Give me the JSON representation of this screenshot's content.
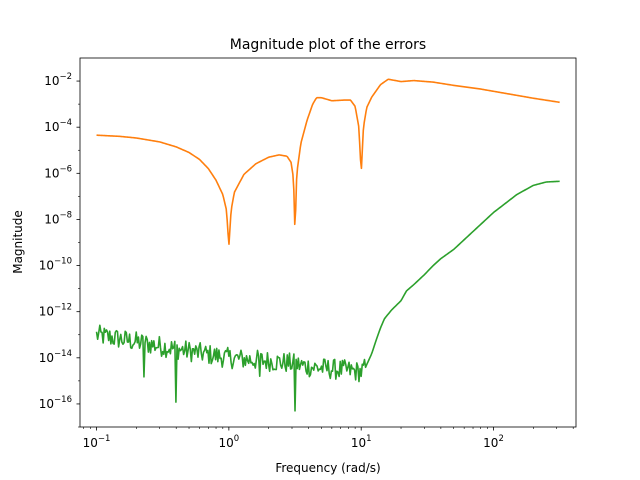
{
  "chart_data": {
    "type": "line",
    "title": "Magnitude plot of the errors",
    "xlabel": "Frequency (rad/s)",
    "ylabel": "Magnitude",
    "xscale": "log",
    "yscale": "log",
    "xlim": [
      0.075,
      420
    ],
    "ylim": [
      1e-17,
      0.1
    ],
    "grid": false,
    "x_ticks": [
      {
        "base": "10",
        "exp": "−1",
        "value": 0.1
      },
      {
        "base": "10",
        "exp": "0",
        "value": 1
      },
      {
        "base": "10",
        "exp": "1",
        "value": 10
      },
      {
        "base": "10",
        "exp": "2",
        "value": 100
      }
    ],
    "y_ticks": [
      {
        "base": "10",
        "exp": "−16",
        "value": 1e-16
      },
      {
        "base": "10",
        "exp": "−14",
        "value": 1e-14
      },
      {
        "base": "10",
        "exp": "−12",
        "value": 1e-12
      },
      {
        "base": "10",
        "exp": "−10",
        "value": 1e-10
      },
      {
        "base": "10",
        "exp": "−8",
        "value": 1e-08
      },
      {
        "base": "10",
        "exp": "−6",
        "value": 1e-06
      },
      {
        "base": "10",
        "exp": "−4",
        "value": 0.0001
      },
      {
        "base": "10",
        "exp": "−2",
        "value": 0.01
      }
    ],
    "series": [
      {
        "color": "#ff7f0e",
        "points": [
          [
            0.1,
            4.5e-05
          ],
          [
            0.15,
            4e-05
          ],
          [
            0.2,
            3.4e-05
          ],
          [
            0.3,
            2.3e-05
          ],
          [
            0.4,
            1.4e-05
          ],
          [
            0.5,
            8e-06
          ],
          [
            0.6,
            4e-06
          ],
          [
            0.7,
            1.6e-06
          ],
          [
            0.8,
            5e-07
          ],
          [
            0.9,
            1.2e-07
          ],
          [
            0.96,
            2.5e-08
          ],
          [
            1.0,
            7e-10
          ],
          [
            1.04,
            2.5e-08
          ],
          [
            1.1,
            1.5e-07
          ],
          [
            1.3,
            9e-07
          ],
          [
            1.6,
            2.6e-06
          ],
          [
            2.0,
            5e-06
          ],
          [
            2.4,
            6.3e-06
          ],
          [
            2.75,
            5.5e-06
          ],
          [
            2.95,
            3e-06
          ],
          [
            3.08,
            6e-07
          ],
          [
            3.16,
            2.5e-09
          ],
          [
            3.26,
            1e-06
          ],
          [
            3.5,
            2e-05
          ],
          [
            3.9,
            0.0002
          ],
          [
            4.3,
            0.001
          ],
          [
            4.6,
            0.0019
          ],
          [
            5.0,
            0.0019
          ],
          [
            6.0,
            0.0014
          ],
          [
            7.5,
            0.0015
          ],
          [
            8.3,
            0.0015
          ],
          [
            9.0,
            0.0008
          ],
          [
            9.6,
            0.0001
          ],
          [
            10.0,
            1e-06
          ],
          [
            10.4,
            0.0001
          ],
          [
            11.0,
            0.0007
          ],
          [
            12.0,
            0.002
          ],
          [
            14.0,
            0.007
          ],
          [
            16.0,
            0.012
          ],
          [
            20.0,
            0.0095
          ],
          [
            25.0,
            0.0105
          ],
          [
            35.0,
            0.009
          ],
          [
            50.0,
            0.0065
          ],
          [
            80.0,
            0.0045
          ],
          [
            120.0,
            0.003
          ],
          [
            200.0,
            0.0018
          ],
          [
            316.0,
            0.0012
          ]
        ]
      },
      {
        "color": "#2ca02c",
        "points": [
          [
            0.1,
            1.2e-13
          ],
          [
            0.15,
            8e-14
          ],
          [
            0.2,
            6e-14
          ],
          [
            0.3,
            4e-14
          ],
          [
            0.4,
            3e-14
          ],
          [
            0.6,
            2e-14
          ],
          [
            0.8,
            1.5e-14
          ],
          [
            1.0,
            1.2e-14
          ],
          [
            1.5,
            1e-14
          ],
          [
            2.0,
            9e-15
          ],
          [
            3.0,
            7e-15
          ],
          [
            4.0,
            5e-15
          ],
          [
            6.0,
            4e-15
          ],
          [
            8.0,
            3.5e-15
          ],
          [
            10.0,
            3e-15
          ],
          [
            11.0,
            5e-15
          ],
          [
            12.0,
            1.5e-14
          ],
          [
            13.0,
            6e-14
          ],
          [
            14.0,
            2e-13
          ],
          [
            15.0,
            5e-13
          ],
          [
            17.0,
            1.2e-12
          ],
          [
            20.0,
            3e-12
          ],
          [
            22.0,
            8e-12
          ],
          [
            25.0,
            1.5e-11
          ],
          [
            30.0,
            4e-11
          ],
          [
            35.0,
            1e-10
          ],
          [
            40.0,
            2e-10
          ],
          [
            50.0,
            5e-10
          ],
          [
            70.0,
            3e-09
          ],
          [
            100.0,
            2e-08
          ],
          [
            150.0,
            1.2e-07
          ],
          [
            200.0,
            3e-07
          ],
          [
            250.0,
            4.2e-07
          ],
          [
            316.0,
            4.5e-07
          ]
        ],
        "noise": {
          "x_until": 10.8,
          "amplitude_decades": 0.9,
          "spikes": [
            [
              0.4,
              1.2e-16
            ],
            [
              3.16,
              5e-17
            ],
            [
              0.23,
              1.5e-15
            ],
            [
              1.7,
              1.6e-15
            ]
          ]
        }
      }
    ]
  }
}
